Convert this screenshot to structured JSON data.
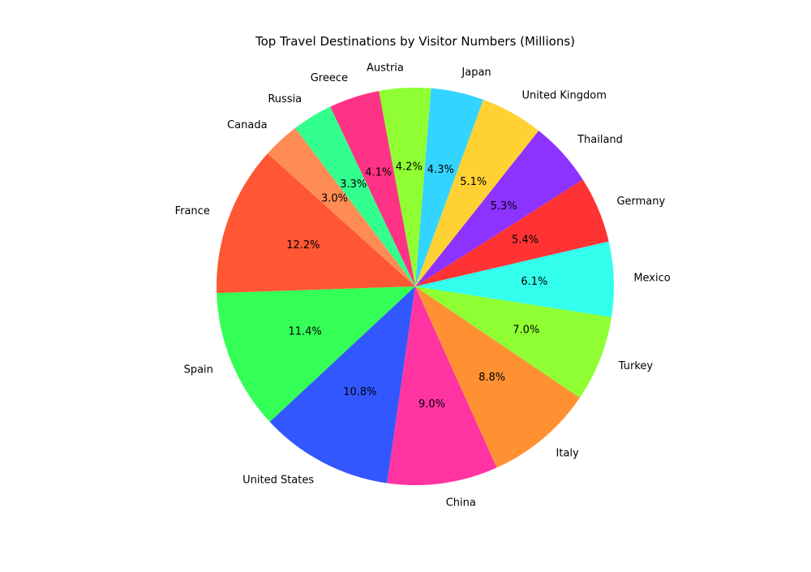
{
  "chart_data": {
    "type": "pie",
    "title": "Top Travel Destinations by Visitor Numbers (Millions)",
    "start_angle_deg": 138,
    "counterclock": true,
    "slices": [
      {
        "label": "France",
        "value": 12.2,
        "pct": "12.2%",
        "color": "#FF5733"
      },
      {
        "label": "Spain",
        "value": 11.4,
        "pct": "11.4%",
        "color": "#33FF57"
      },
      {
        "label": "United States",
        "value": 10.8,
        "pct": "10.8%",
        "color": "#3357FF"
      },
      {
        "label": "China",
        "value": 9.0,
        "pct": "9.0%",
        "color": "#FF33A1"
      },
      {
        "label": "Italy",
        "value": 8.8,
        "pct": "8.8%",
        "color": "#FF9133"
      },
      {
        "label": "Turkey",
        "value": 7.0,
        "pct": "7.0%",
        "color": "#8FFF33"
      },
      {
        "label": "Mexico",
        "value": 6.1,
        "pct": "6.1%",
        "color": "#33FFEC"
      },
      {
        "label": "Germany",
        "value": 5.4,
        "pct": "5.4%",
        "color": "#FF3333"
      },
      {
        "label": "Thailand",
        "value": 5.3,
        "pct": "5.3%",
        "color": "#8D33FF"
      },
      {
        "label": "United Kingdom",
        "value": 5.1,
        "pct": "5.1%",
        "color": "#FFD133"
      },
      {
        "label": "Japan",
        "value": 4.3,
        "pct": "4.3%",
        "color": "#33D4FF"
      },
      {
        "label": "Austria",
        "value": 4.2,
        "pct": "4.2%",
        "color": "#8FFF33"
      },
      {
        "label": "Greece",
        "value": 4.1,
        "pct": "4.1%",
        "color": "#FF3385"
      },
      {
        "label": "Russia",
        "value": 3.3,
        "pct": "3.3%",
        "color": "#33FF8F"
      },
      {
        "label": "Canada",
        "value": 3.0,
        "pct": "3.0%",
        "color": "#FF8C55"
      }
    ]
  }
}
